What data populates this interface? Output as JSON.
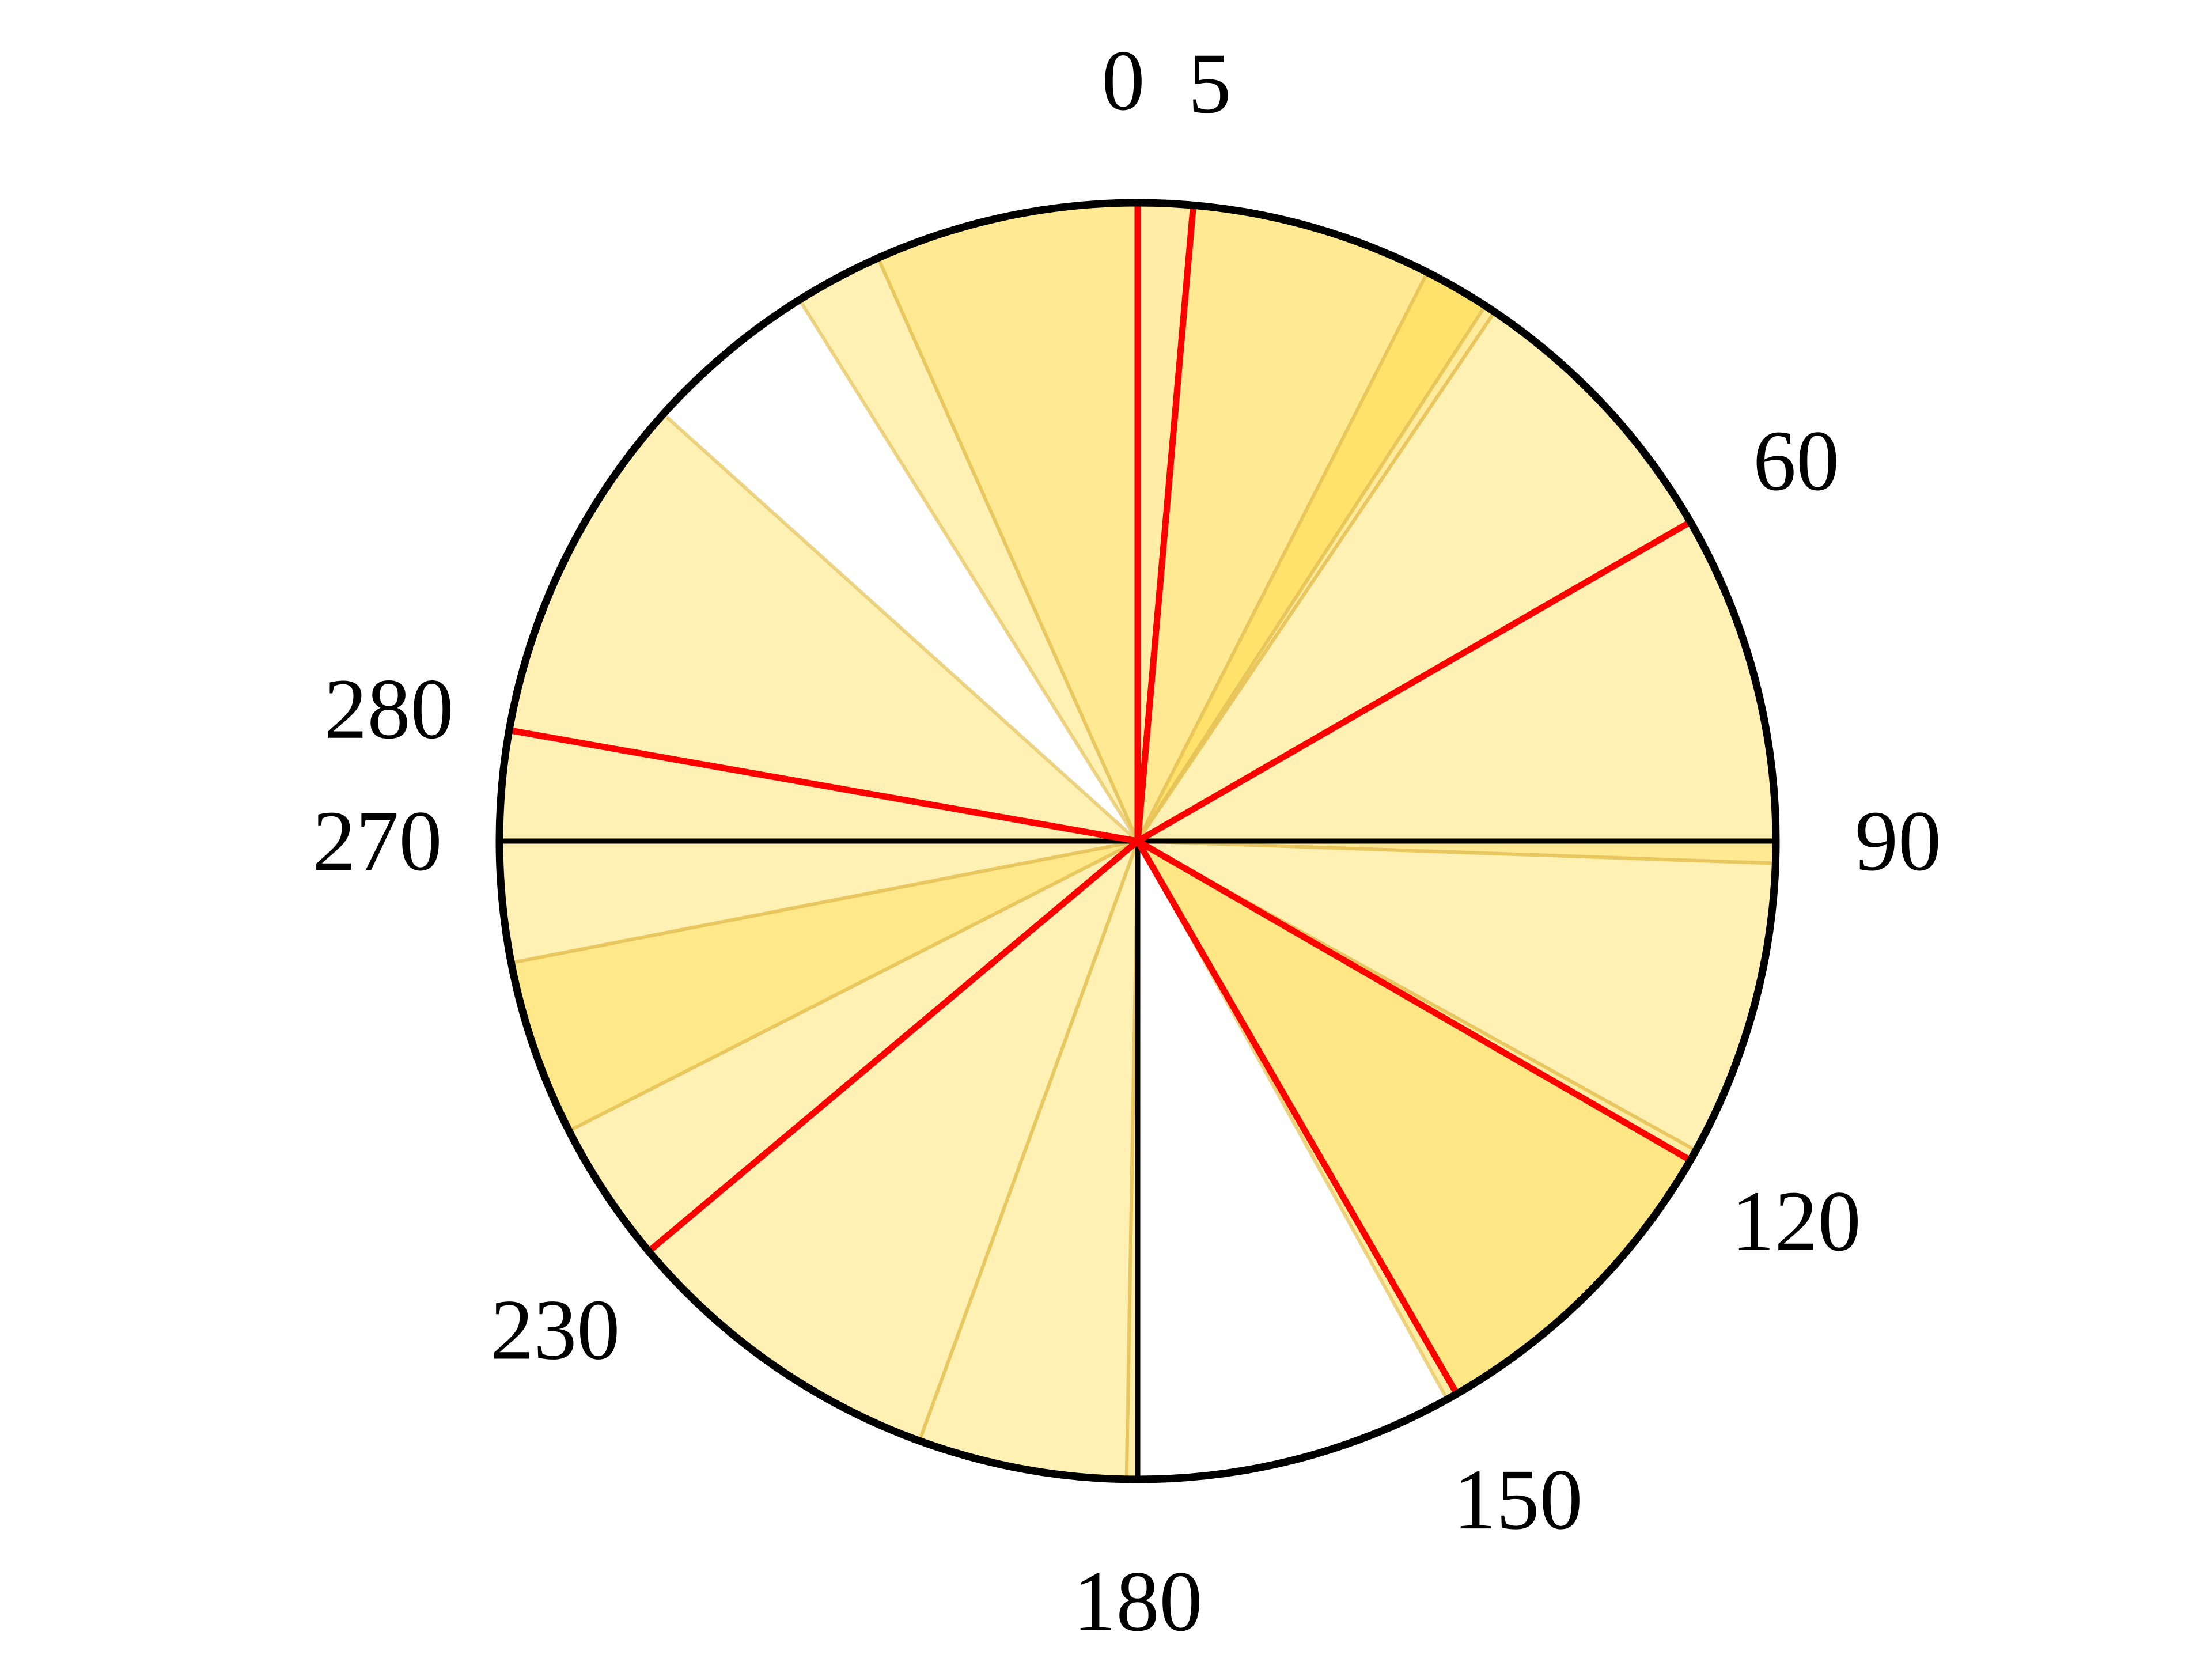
{
  "diagram": {
    "title": "",
    "colors": {
      "sector_fill": "#ffd83a",
      "sector_edge": "#e6c25a",
      "marker_line": "#ff0000",
      "axis_line": "#000000",
      "outline": "#000000",
      "background": "#ffffff"
    },
    "sectors": [
      {
        "start_deg": 0,
        "end_deg": 5,
        "opacity": 0.45
      },
      {
        "start_deg": 5,
        "end_deg": 27,
        "opacity": 0.55
      },
      {
        "start_deg": 27,
        "end_deg": 33,
        "opacity": 0.75
      },
      {
        "start_deg": 33,
        "end_deg": 34,
        "opacity": 0.5
      },
      {
        "start_deg": 34,
        "end_deg": 90,
        "opacity": 0.38
      },
      {
        "start_deg": 90,
        "end_deg": 92,
        "opacity": 0.55
      },
      {
        "start_deg": 92,
        "end_deg": 119,
        "opacity": 0.38
      },
      {
        "start_deg": 119,
        "end_deg": 120,
        "opacity": 0.45
      },
      {
        "start_deg": 120,
        "end_deg": 150,
        "opacity": 0.62
      },
      {
        "start_deg": 150,
        "end_deg": 151,
        "opacity": 0.45
      },
      {
        "start_deg": 180,
        "end_deg": 181,
        "opacity": 0.45
      },
      {
        "start_deg": 181,
        "end_deg": 200,
        "opacity": 0.38
      },
      {
        "start_deg": 200,
        "end_deg": 230,
        "opacity": 0.38
      },
      {
        "start_deg": 230,
        "end_deg": 243,
        "opacity": 0.38
      },
      {
        "start_deg": 243,
        "end_deg": 259,
        "opacity": 0.6
      },
      {
        "start_deg": 259,
        "end_deg": 270,
        "opacity": 0.38
      },
      {
        "start_deg": 270,
        "end_deg": 280,
        "opacity": 0.38
      },
      {
        "start_deg": 280,
        "end_deg": 312,
        "opacity": 0.38
      },
      {
        "start_deg": 328,
        "end_deg": 336,
        "opacity": 0.38
      },
      {
        "start_deg": 336,
        "end_deg": 360,
        "opacity": 0.55
      }
    ],
    "marker_angles_deg": [
      0,
      5,
      60,
      120,
      150,
      230,
      280
    ],
    "axis_angles_deg": [
      90,
      180,
      270
    ],
    "labels": [
      {
        "text": "0",
        "angle_deg": 0
      },
      {
        "text": "5",
        "angle_deg": 5
      },
      {
        "text": "60",
        "angle_deg": 60
      },
      {
        "text": "90",
        "angle_deg": 90
      },
      {
        "text": "120",
        "angle_deg": 120
      },
      {
        "text": "150",
        "angle_deg": 150
      },
      {
        "text": "180",
        "angle_deg": 180
      },
      {
        "text": "230",
        "angle_deg": 230
      },
      {
        "text": "270",
        "angle_deg": 270
      },
      {
        "text": "280",
        "angle_deg": 280
      }
    ]
  }
}
